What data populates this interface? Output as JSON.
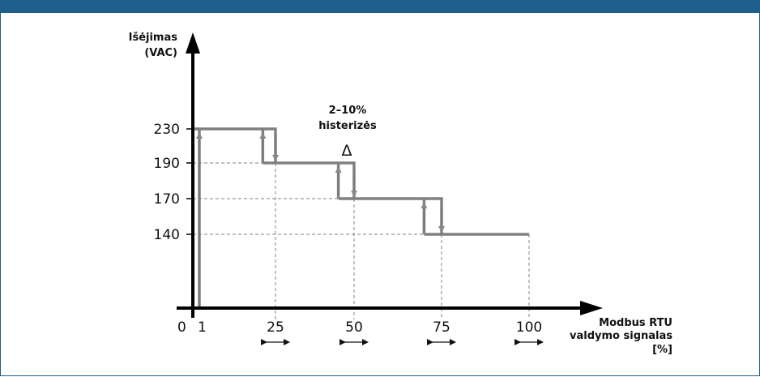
{
  "diagram": {
    "y_axis_title_line1": "Išėjimas",
    "y_axis_title_line2": "(VAC)",
    "x_axis_title_line1": "Modbus RTU",
    "x_axis_title_line2": "valdymo signalas",
    "x_axis_title_line3": "[%]",
    "origin_label": "0",
    "hysteresis_line1": "2–10%",
    "hysteresis_line2": "histerizės",
    "delta_symbol": "Δ"
  },
  "chart_data": {
    "type": "line",
    "xlabel": "Modbus RTU valdymo signalas [%]",
    "ylabel": "Išėjimas (VAC)",
    "x_ticks": [
      "1",
      "25",
      "50",
      "75",
      "100"
    ],
    "y_ticks": [
      "230",
      "190",
      "170",
      "140"
    ],
    "series": [
      {
        "x": [
          1,
          1,
          25,
          25,
          50,
          50,
          75,
          75,
          100
        ],
        "y": [
          0,
          230,
          230,
          190,
          190,
          170,
          170,
          140,
          140
        ]
      }
    ],
    "hysteresis_steps": [
      {
        "down_at": 25,
        "up_at": 21,
        "from": 230,
        "to": 190
      },
      {
        "down_at": 50,
        "up_at": 45,
        "from": 190,
        "to": 170
      },
      {
        "down_at": 75,
        "up_at": 70,
        "from": 170,
        "to": 140
      }
    ],
    "colors": {
      "line": "#808080",
      "arrow": "#777777",
      "axis": "#000000",
      "guide": "#999999",
      "frame": "#1f5f8b"
    }
  }
}
